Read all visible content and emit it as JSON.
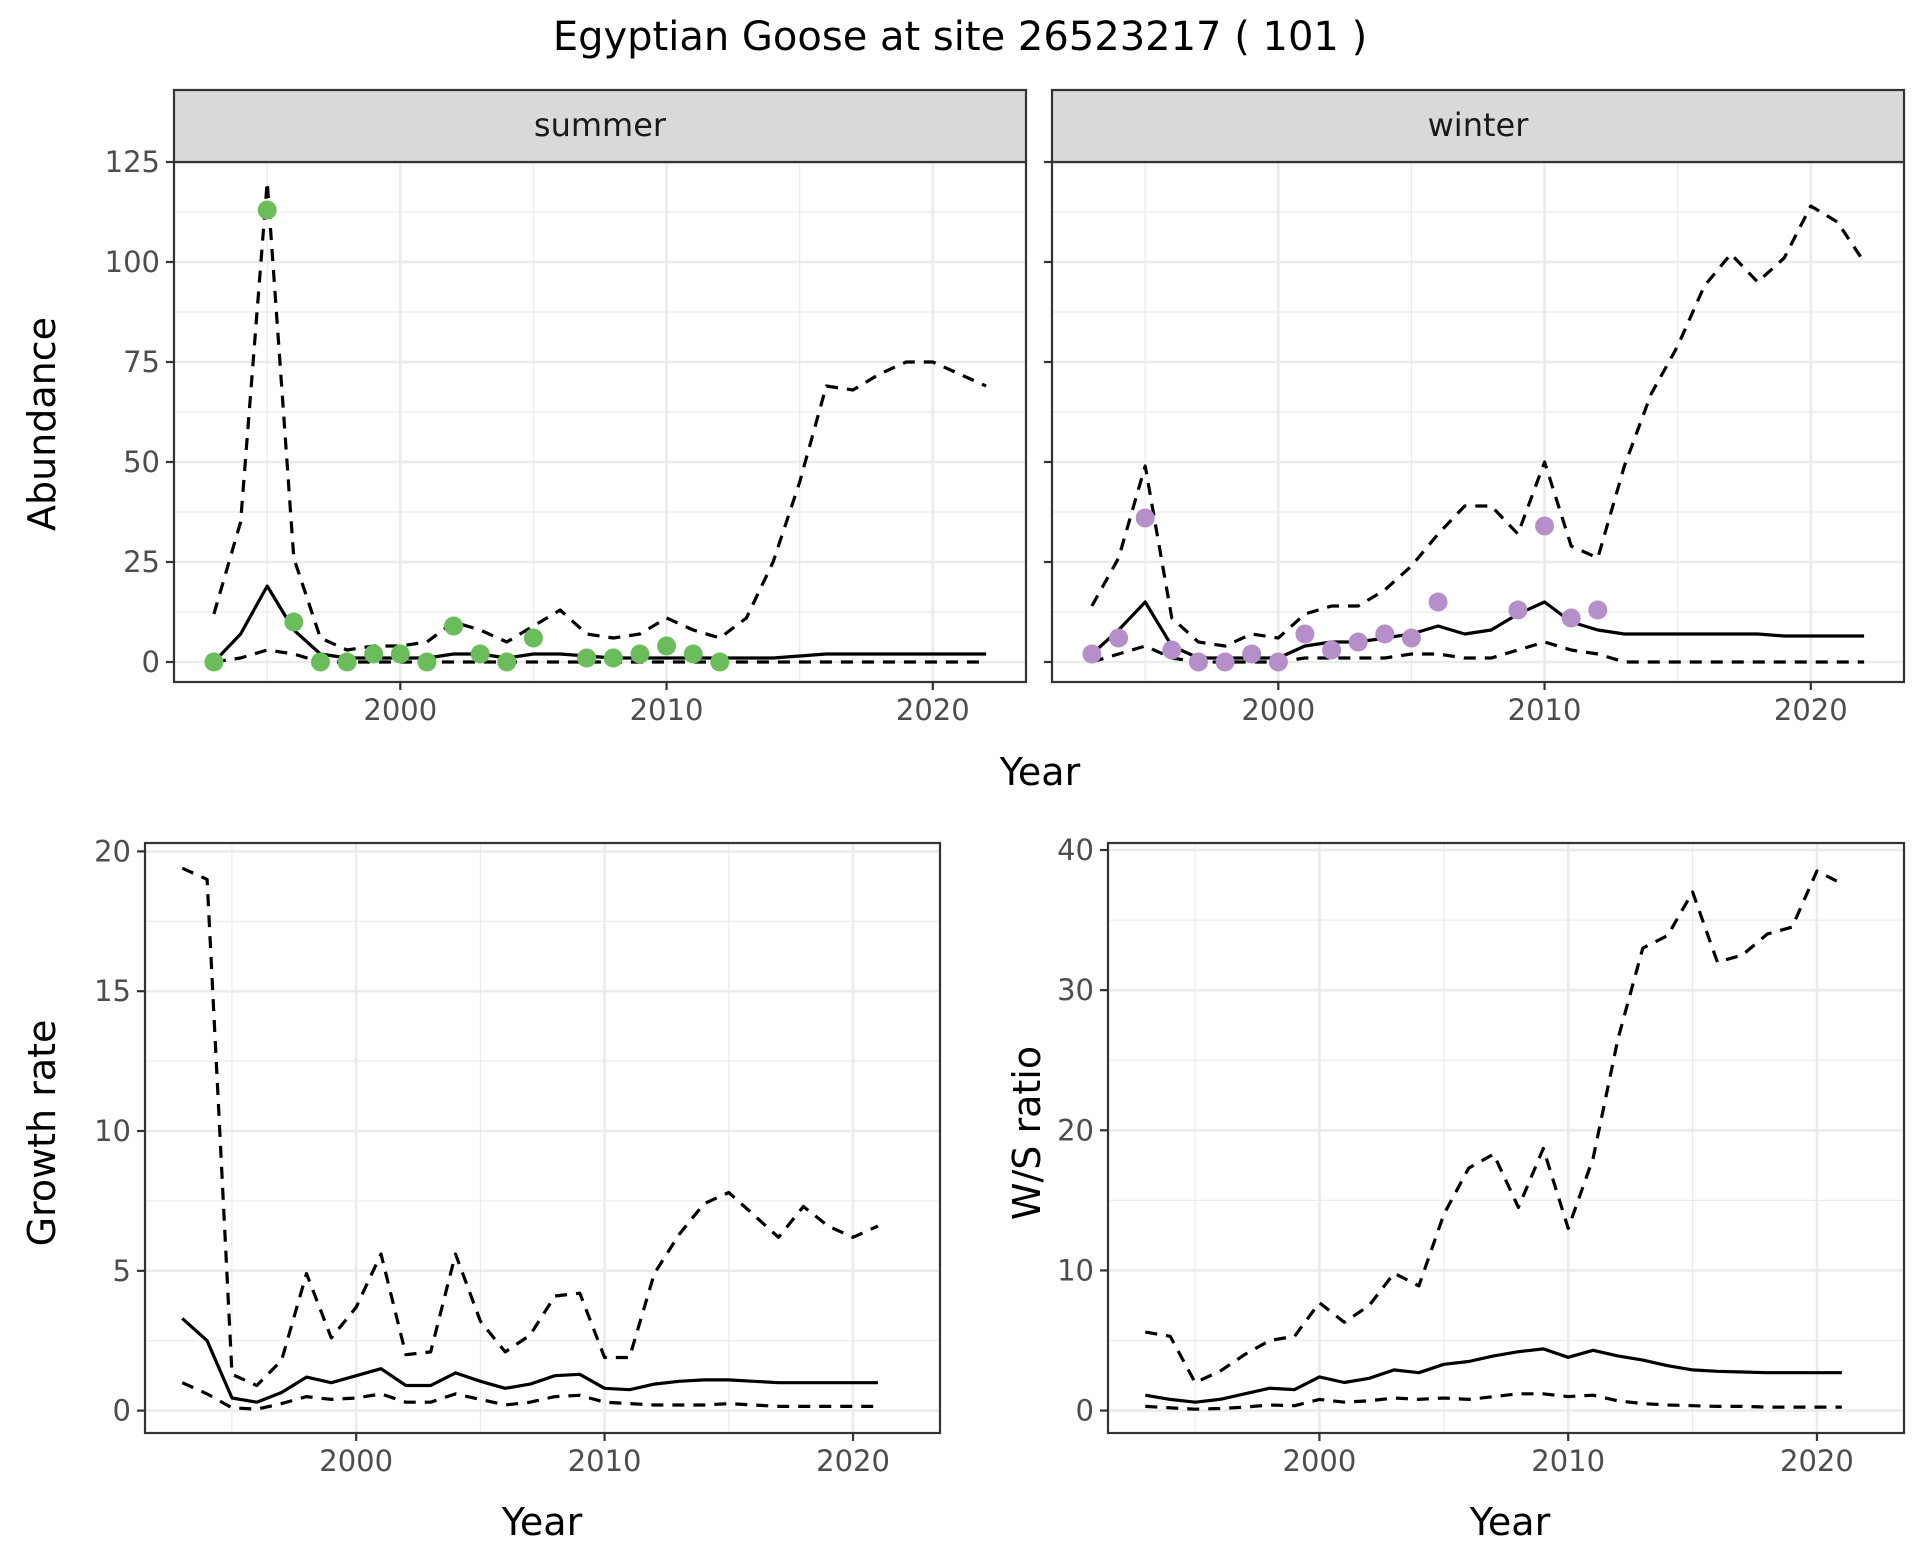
{
  "title": "Egyptian Goose at site 26523217 ( 101 )",
  "colors": {
    "summer_points": "#6bbd5b",
    "winter_points": "#b48fca",
    "strip_fill": "#d9d9d9",
    "grid": "#ebebeb",
    "line": "#000000"
  },
  "chart_data": [
    {
      "type": "line",
      "title": "summer",
      "xlabel": "Year",
      "ylabel": "Abundance",
      "xlim": [
        1991.5,
        2023.5
      ],
      "ylim": [
        -5,
        125
      ],
      "x_ticks": [
        2000,
        2010,
        2020
      ],
      "y_ticks": [
        0,
        25,
        50,
        75,
        100,
        125
      ],
      "grid": true,
      "series": [
        {
          "role": "estimate",
          "style": "solid",
          "x": [
            1993,
            1994,
            1995,
            1996,
            1997,
            1998,
            1999,
            2000,
            2001,
            2002,
            2003,
            2004,
            2005,
            2006,
            2007,
            2008,
            2009,
            2010,
            2011,
            2012,
            2013,
            2014,
            2015,
            2016,
            2017,
            2018,
            2019,
            2020,
            2021,
            2022
          ],
          "y": [
            0,
            7,
            19,
            8,
            2,
            1,
            1,
            1,
            1,
            2,
            2,
            1,
            2,
            2,
            1.5,
            1,
            1,
            1,
            1,
            1,
            1,
            1,
            1.5,
            2,
            2,
            2,
            2,
            2,
            2,
            2
          ]
        },
        {
          "role": "upper",
          "style": "dashed",
          "x": [
            1993,
            1994,
            1995,
            1996,
            1997,
            1998,
            1999,
            2000,
            2001,
            2002,
            2003,
            2004,
            2005,
            2006,
            2007,
            2008,
            2009,
            2010,
            2011,
            2012,
            2013,
            2014,
            2015,
            2016,
            2017,
            2018,
            2019,
            2020,
            2021,
            2022
          ],
          "y": [
            12,
            35,
            120,
            26,
            6,
            3,
            4,
            4,
            5,
            10,
            8,
            5,
            9,
            13,
            7,
            6,
            7,
            11,
            8,
            6,
            11,
            25,
            45,
            69,
            68,
            72,
            75,
            75,
            72,
            69
          ]
        },
        {
          "role": "lower",
          "style": "dashed",
          "x": [
            1993,
            1994,
            1995,
            1996,
            1997,
            1998,
            1999,
            2000,
            2001,
            2002,
            2003,
            2004,
            2005,
            2006,
            2007,
            2008,
            2009,
            2010,
            2011,
            2012,
            2013,
            2014,
            2015,
            2016,
            2017,
            2018,
            2019,
            2020,
            2021,
            2022
          ],
          "y": [
            0,
            1,
            3,
            2,
            0,
            0,
            0,
            0,
            0,
            0,
            0,
            0,
            0,
            0,
            0,
            0,
            0,
            0,
            0,
            0,
            0,
            0,
            0,
            0,
            0,
            0,
            0,
            0,
            0,
            0
          ]
        },
        {
          "role": "observed",
          "style": "points",
          "x": [
            1993,
            1995,
            1996,
            1997,
            1998,
            1999,
            2000,
            2001,
            2002,
            2003,
            2004,
            2005,
            2007,
            2008,
            2009,
            2010,
            2011,
            2012
          ],
          "y": [
            0,
            113,
            10,
            0,
            0,
            2,
            2,
            0,
            9,
            2,
            0,
            6,
            1,
            1,
            2,
            4,
            2,
            0
          ]
        }
      ]
    },
    {
      "type": "line",
      "title": "winter",
      "xlabel": "Year",
      "ylabel": "Abundance",
      "xlim": [
        1991.5,
        2023.5
      ],
      "ylim": [
        -5,
        125
      ],
      "x_ticks": [
        2000,
        2010,
        2020
      ],
      "y_ticks": [
        0,
        25,
        50,
        75,
        100,
        125
      ],
      "grid": true,
      "series": [
        {
          "role": "estimate",
          "style": "solid",
          "x": [
            1993,
            1994,
            1995,
            1996,
            1997,
            1998,
            1999,
            2000,
            2001,
            2002,
            2003,
            2004,
            2005,
            2006,
            2007,
            2008,
            2009,
            2010,
            2011,
            2012,
            2013,
            2014,
            2015,
            2016,
            2017,
            2018,
            2019,
            2020,
            2021,
            2022
          ],
          "y": [
            2,
            8,
            15,
            4,
            1,
            1,
            1,
            1,
            4,
            5,
            5,
            6,
            7,
            9,
            7,
            8,
            12,
            15,
            10,
            8,
            7,
            7,
            7,
            7,
            7,
            7,
            6.5,
            6.5,
            6.5,
            6.5
          ]
        },
        {
          "role": "upper",
          "style": "dashed",
          "x": [
            1993,
            1994,
            1995,
            1996,
            1997,
            1998,
            1999,
            2000,
            2001,
            2002,
            2003,
            2004,
            2005,
            2006,
            2007,
            2008,
            2009,
            2010,
            2011,
            2012,
            2013,
            2014,
            2015,
            2016,
            2017,
            2018,
            2019,
            2020,
            2021,
            2022
          ],
          "y": [
            14,
            26,
            49,
            11,
            5,
            4,
            7,
            6,
            12,
            14,
            14,
            18,
            24,
            32,
            39,
            39,
            32,
            50,
            29,
            26,
            49,
            67,
            79,
            94,
            102,
            95,
            101,
            114,
            110,
            100
          ]
        },
        {
          "role": "lower",
          "style": "dashed",
          "x": [
            1993,
            1994,
            1995,
            1996,
            1997,
            1998,
            1999,
            2000,
            2001,
            2002,
            2003,
            2004,
            2005,
            2006,
            2007,
            2008,
            2009,
            2010,
            2011,
            2012,
            2013,
            2014,
            2015,
            2016,
            2017,
            2018,
            2019,
            2020,
            2021,
            2022
          ],
          "y": [
            0,
            2,
            4,
            1,
            0,
            0,
            0,
            0,
            1,
            1,
            1,
            1,
            2,
            2,
            1,
            1,
            3,
            5,
            3,
            2,
            0,
            0,
            0,
            0,
            0,
            0,
            0,
            0,
            0,
            0
          ]
        },
        {
          "role": "observed",
          "style": "points",
          "x": [
            1993,
            1994,
            1995,
            1996,
            1997,
            1998,
            1999,
            2000,
            2001,
            2002,
            2003,
            2004,
            2005,
            2006,
            2009,
            2010,
            2011,
            2012
          ],
          "y": [
            2,
            6,
            36,
            3,
            0,
            0,
            2,
            0,
            7,
            3,
            5,
            7,
            6,
            15,
            13,
            34,
            11,
            13
          ]
        }
      ]
    },
    {
      "type": "line",
      "xlabel": "Year",
      "ylabel": "Growth rate",
      "xlim": [
        1991.5,
        2023.5
      ],
      "ylim": [
        -0.8,
        20.3
      ],
      "x_ticks": [
        2000,
        2010,
        2020
      ],
      "y_ticks": [
        0,
        5,
        10,
        15,
        20
      ],
      "grid": true,
      "series": [
        {
          "role": "estimate",
          "style": "solid",
          "x": [
            1993,
            1994,
            1995,
            1996,
            1997,
            1998,
            1999,
            2000,
            2001,
            2002,
            2003,
            2004,
            2005,
            2006,
            2007,
            2008,
            2009,
            2010,
            2011,
            2012,
            2013,
            2014,
            2015,
            2016,
            2017,
            2018,
            2019,
            2020,
            2021
          ],
          "y": [
            3.3,
            2.5,
            0.45,
            0.3,
            0.65,
            1.2,
            1,
            1.25,
            1.5,
            0.9,
            0.9,
            1.35,
            1.05,
            0.8,
            0.95,
            1.25,
            1.3,
            0.8,
            0.75,
            0.95,
            1.05,
            1.1,
            1.1,
            1.05,
            1.0,
            1.0,
            1.0,
            1.0,
            1.0
          ]
        },
        {
          "role": "upper",
          "style": "dashed",
          "x": [
            1993,
            1994,
            1995,
            1996,
            1997,
            1998,
            1999,
            2000,
            2001,
            2002,
            2003,
            2004,
            2005,
            2006,
            2007,
            2008,
            2009,
            2010,
            2011,
            2012,
            2013,
            2014,
            2015,
            2016,
            2017,
            2018,
            2019,
            2020,
            2021
          ],
          "y": [
            19.4,
            19.0,
            1.3,
            0.9,
            1.8,
            4.9,
            2.6,
            3.7,
            5.6,
            2.0,
            2.1,
            5.6,
            3.2,
            2.1,
            2.7,
            4.1,
            4.2,
            1.9,
            1.9,
            4.9,
            6.3,
            7.4,
            7.8,
            7.0,
            6.2,
            7.3,
            6.6,
            6.2,
            6.6
          ]
        },
        {
          "role": "lower",
          "style": "dashed",
          "x": [
            1993,
            1994,
            1995,
            1996,
            1997,
            1998,
            1999,
            2000,
            2001,
            2002,
            2003,
            2004,
            2005,
            2006,
            2007,
            2008,
            2009,
            2010,
            2011,
            2012,
            2013,
            2014,
            2015,
            2016,
            2017,
            2018,
            2019,
            2020,
            2021
          ],
          "y": [
            1.0,
            0.6,
            0.1,
            0.05,
            0.25,
            0.5,
            0.4,
            0.45,
            0.6,
            0.3,
            0.3,
            0.6,
            0.4,
            0.2,
            0.3,
            0.5,
            0.55,
            0.3,
            0.25,
            0.2,
            0.2,
            0.2,
            0.25,
            0.2,
            0.15,
            0.15,
            0.15,
            0.15,
            0.15
          ]
        }
      ]
    },
    {
      "type": "line",
      "xlabel": "Year",
      "ylabel": "W/S ratio",
      "xlim": [
        1991.5,
        2023.5
      ],
      "ylim": [
        -1.6,
        40.5
      ],
      "x_ticks": [
        2000,
        2010,
        2020
      ],
      "y_ticks": [
        0,
        10,
        20,
        30,
        40
      ],
      "grid": true,
      "series": [
        {
          "role": "estimate",
          "style": "solid",
          "x": [
            1993,
            1994,
            1995,
            1996,
            1997,
            1998,
            1999,
            2000,
            2001,
            2002,
            2003,
            2004,
            2005,
            2006,
            2007,
            2008,
            2009,
            2010,
            2011,
            2012,
            2013,
            2014,
            2015,
            2016,
            2017,
            2018,
            2019,
            2020,
            2021
          ],
          "y": [
            1.1,
            0.8,
            0.6,
            0.8,
            1.2,
            1.6,
            1.5,
            2.4,
            2.0,
            2.3,
            2.9,
            2.7,
            3.3,
            3.5,
            3.9,
            4.2,
            4.4,
            3.8,
            4.3,
            3.9,
            3.6,
            3.2,
            2.9,
            2.8,
            2.75,
            2.7,
            2.7,
            2.7,
            2.7
          ]
        },
        {
          "role": "upper",
          "style": "dashed",
          "x": [
            1993,
            1994,
            1995,
            1996,
            1997,
            1998,
            1999,
            2000,
            2001,
            2002,
            2003,
            2004,
            2005,
            2006,
            2007,
            2008,
            2009,
            2010,
            2011,
            2012,
            2013,
            2014,
            2015,
            2016,
            2017,
            2018,
            2019,
            2020,
            2021
          ],
          "y": [
            5.6,
            5.3,
            2.0,
            2.8,
            4.0,
            5.0,
            5.3,
            7.7,
            6.3,
            7.5,
            9.8,
            8.9,
            14.0,
            17.3,
            18.3,
            14.5,
            18.7,
            13.0,
            18.0,
            26.5,
            33.0,
            33.9,
            37.0,
            32.0,
            32.5,
            34.0,
            34.5,
            38.5,
            37.6
          ]
        },
        {
          "role": "lower",
          "style": "dashed",
          "x": [
            1993,
            1994,
            1995,
            1996,
            1997,
            1998,
            1999,
            2000,
            2001,
            2002,
            2003,
            2004,
            2005,
            2006,
            2007,
            2008,
            2009,
            2010,
            2011,
            2012,
            2013,
            2014,
            2015,
            2016,
            2017,
            2018,
            2019,
            2020,
            2021
          ],
          "y": [
            0.3,
            0.2,
            0.1,
            0.15,
            0.25,
            0.4,
            0.35,
            0.8,
            0.6,
            0.7,
            0.9,
            0.8,
            0.9,
            0.8,
            1.0,
            1.2,
            1.2,
            1.0,
            1.1,
            0.7,
            0.5,
            0.4,
            0.35,
            0.3,
            0.3,
            0.25,
            0.25,
            0.25,
            0.25
          ]
        }
      ]
    }
  ]
}
